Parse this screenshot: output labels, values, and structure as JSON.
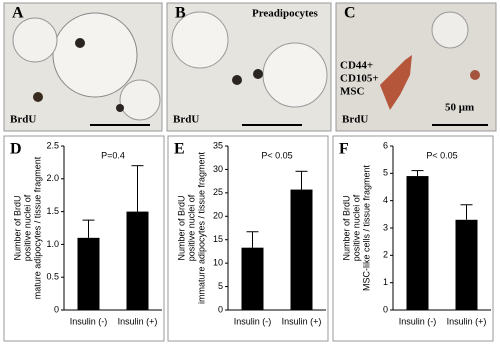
{
  "images": [
    {
      "letter": "A",
      "labels": [
        "BrdU"
      ]
    },
    {
      "letter": "B",
      "labels": [
        "Preadipocytes",
        "BrdU"
      ]
    },
    {
      "letter": "C",
      "labels": [
        "CD44+",
        "CD105+",
        "MSC",
        "BrdU",
        "50 μm"
      ]
    }
  ],
  "chart_data": [
    {
      "type": "bar",
      "panel": "D",
      "annotation": "P=0.4",
      "ylabel": [
        "Number of BrdU",
        "positive nuclei of",
        "mature adipocytes / tissue fragment"
      ],
      "categories": [
        "Insulin (-)",
        "Insulin (+)"
      ],
      "values": [
        1.1,
        1.5
      ],
      "errors": [
        0.27,
        0.7
      ],
      "color": "#000000",
      "ylim": [
        0,
        2.5
      ],
      "yticks": [
        0,
        0.5,
        {
          "value": 1,
          "label": "1.0"
        },
        1.5,
        {
          "value": 2,
          "label": "2.0"
        },
        2.5
      ]
    },
    {
      "type": "bar",
      "panel": "E",
      "annotation": "P< 0.05",
      "ylabel": [
        "Number of BrdU",
        "positive nuclei of",
        "immature adipocytes / tissue fragment"
      ],
      "categories": [
        "Insulin (-)",
        "Insulin (+)"
      ],
      "values": [
        13.3,
        25.7
      ],
      "errors": [
        3.4,
        3.9
      ],
      "color": "#000000",
      "ylim": [
        0,
        35
      ],
      "yticks": [
        0,
        5,
        10,
        15,
        20,
        25,
        30,
        35
      ]
    },
    {
      "type": "bar",
      "panel": "F",
      "annotation": "P< 0.05",
      "ylabel": [
        "Number of BrdU",
        "positive nuclei of",
        "MSC-like cells / tissue fragment"
      ],
      "categories": [
        "Insulin (-)",
        "Insulin (+)"
      ],
      "values": [
        4.9,
        3.3
      ],
      "errors": [
        0.2,
        0.55
      ],
      "color": "#000000",
      "ylim": [
        0,
        6
      ],
      "yticks": [
        0,
        1,
        2,
        3,
        4,
        5,
        6
      ]
    }
  ]
}
